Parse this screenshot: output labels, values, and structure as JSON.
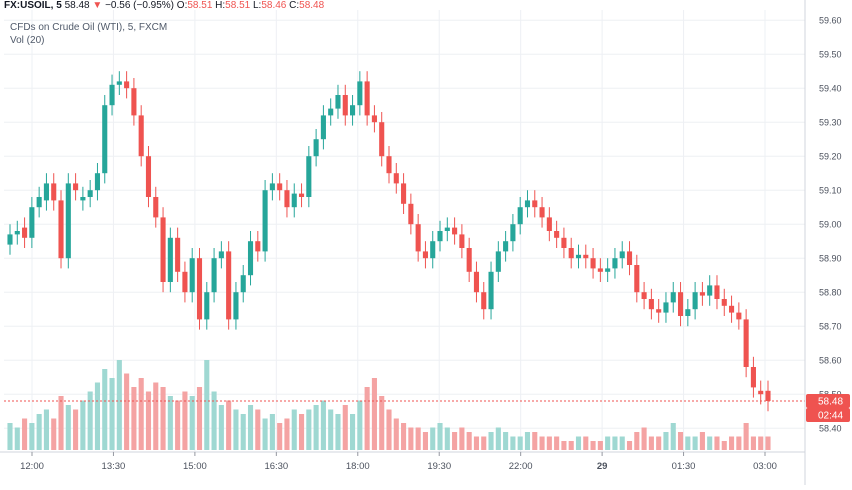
{
  "header": {
    "symbol": "FX:USOIL, 5",
    "last": "58.48",
    "arrow": "▼",
    "change": "−0.56 (−0.95%)",
    "o_label": "O:",
    "o": "58.51",
    "h_label": "H:",
    "h": "58.51",
    "l_label": "L:",
    "l": "58.46",
    "c_label": "C:",
    "c": "58.48"
  },
  "series_title": "CFDs on Crude Oil (WTI), 5, FXCM",
  "volume_label": "Vol (20)",
  "price_tag": "58.48",
  "countdown_tag": "02:44",
  "colors": {
    "up": "#26a69a",
    "down": "#ef5350",
    "vol_up": "#9fd8d2",
    "vol_down": "#f4a3a3",
    "grid": "#eef0f4",
    "axis_text": "#4c525e"
  },
  "chart_data": {
    "type": "candlestick",
    "y_ticks": [
      "59.60",
      "59.50",
      "59.40",
      "59.30",
      "59.20",
      "59.10",
      "59.00",
      "58.90",
      "58.80",
      "58.70",
      "58.60",
      "58.50",
      "58.40"
    ],
    "x_ticks": [
      "12:00",
      "13:30",
      "15:00",
      "16:30",
      "18:00",
      "19:30",
      "22:00",
      "29",
      "01:30",
      "03:00"
    ],
    "ylim": [
      58.33,
      59.63
    ],
    "last_price": 58.48,
    "volume_length": 20,
    "ohlc_close": [
      58.97,
      58.98,
      58.96,
      59.05,
      59.08,
      59.12,
      59.07,
      58.9,
      59.12,
      59.1,
      59.08,
      59.1,
      59.15,
      59.35,
      59.41,
      59.42,
      59.4,
      59.32,
      59.2,
      59.08,
      59.02,
      58.83,
      58.96,
      58.86,
      58.8,
      58.9,
      58.72,
      58.8,
      58.9,
      58.92,
      58.72,
      58.8,
      58.85,
      58.95,
      58.92,
      59.1,
      59.12,
      59.1,
      59.05,
      59.09,
      59.08,
      59.2,
      59.25,
      59.32,
      59.34,
      59.38,
      59.32,
      59.35,
      59.42,
      59.32,
      59.3,
      59.2,
      59.15,
      59.12,
      59.06,
      59.0,
      58.92,
      58.9,
      58.95,
      58.98,
      58.99,
      58.97,
      58.93,
      58.86,
      58.8,
      58.75,
      58.86,
      58.92,
      58.95,
      59.0,
      59.05,
      59.07,
      59.05,
      59.02,
      58.98,
      58.96,
      58.93,
      58.9,
      58.91,
      58.9,
      58.87,
      58.86,
      58.87,
      58.9,
      58.92,
      58.88,
      58.8,
      58.78,
      58.75,
      58.74,
      58.77,
      58.8,
      58.73,
      58.75,
      58.8,
      58.79,
      58.82,
      58.78,
      58.76,
      58.74,
      58.72,
      58.58,
      58.52,
      58.5,
      58.48
    ],
    "ohlc_open": [
      58.94,
      58.97,
      58.99,
      58.96,
      59.05,
      59.07,
      59.12,
      59.07,
      58.9,
      59.12,
      59.07,
      59.08,
      59.1,
      59.15,
      59.35,
      59.41,
      59.42,
      59.4,
      59.32,
      59.2,
      59.08,
      59.02,
      58.83,
      58.96,
      58.86,
      58.8,
      58.9,
      58.72,
      58.8,
      58.9,
      58.92,
      58.72,
      58.8,
      58.85,
      58.95,
      58.92,
      59.1,
      59.12,
      59.1,
      59.05,
      59.09,
      59.08,
      59.2,
      59.25,
      59.32,
      59.34,
      59.38,
      59.32,
      59.35,
      59.42,
      59.32,
      59.3,
      59.2,
      59.15,
      59.12,
      59.06,
      59.0,
      58.92,
      58.9,
      58.95,
      58.98,
      58.99,
      58.97,
      58.93,
      58.86,
      58.8,
      58.75,
      58.86,
      58.92,
      58.95,
      59.0,
      59.05,
      59.07,
      59.05,
      59.02,
      58.98,
      58.96,
      58.93,
      58.9,
      58.91,
      58.9,
      58.87,
      58.86,
      58.87,
      58.9,
      58.92,
      58.88,
      58.8,
      58.78,
      58.75,
      58.74,
      58.77,
      58.8,
      58.73,
      58.75,
      58.8,
      58.79,
      58.82,
      58.78,
      58.76,
      58.74,
      58.72,
      58.58,
      58.51,
      58.51
    ],
    "volume": [
      6,
      5,
      7,
      6,
      8,
      9,
      7,
      12,
      10,
      9,
      11,
      13,
      15,
      18,
      16,
      20,
      17,
      14,
      16,
      13,
      15,
      14,
      12,
      11,
      13,
      12,
      14,
      20,
      13,
      10,
      11,
      9,
      8,
      10,
      9,
      7,
      8,
      6,
      7,
      9,
      8,
      9,
      10,
      11,
      9,
      8,
      10,
      8,
      11,
      14,
      16,
      12,
      9,
      7,
      6,
      5,
      5,
      4,
      5,
      6,
      5,
      4,
      5,
      4,
      3,
      3,
      4,
      5,
      4,
      3,
      3,
      4,
      4,
      3,
      3,
      3,
      2,
      2,
      3,
      3,
      2,
      2,
      3,
      3,
      3,
      2,
      4,
      5,
      3,
      3,
      4,
      6,
      4,
      3,
      3,
      4,
      3,
      3,
      2,
      3,
      3,
      6,
      3,
      3,
      3
    ]
  }
}
